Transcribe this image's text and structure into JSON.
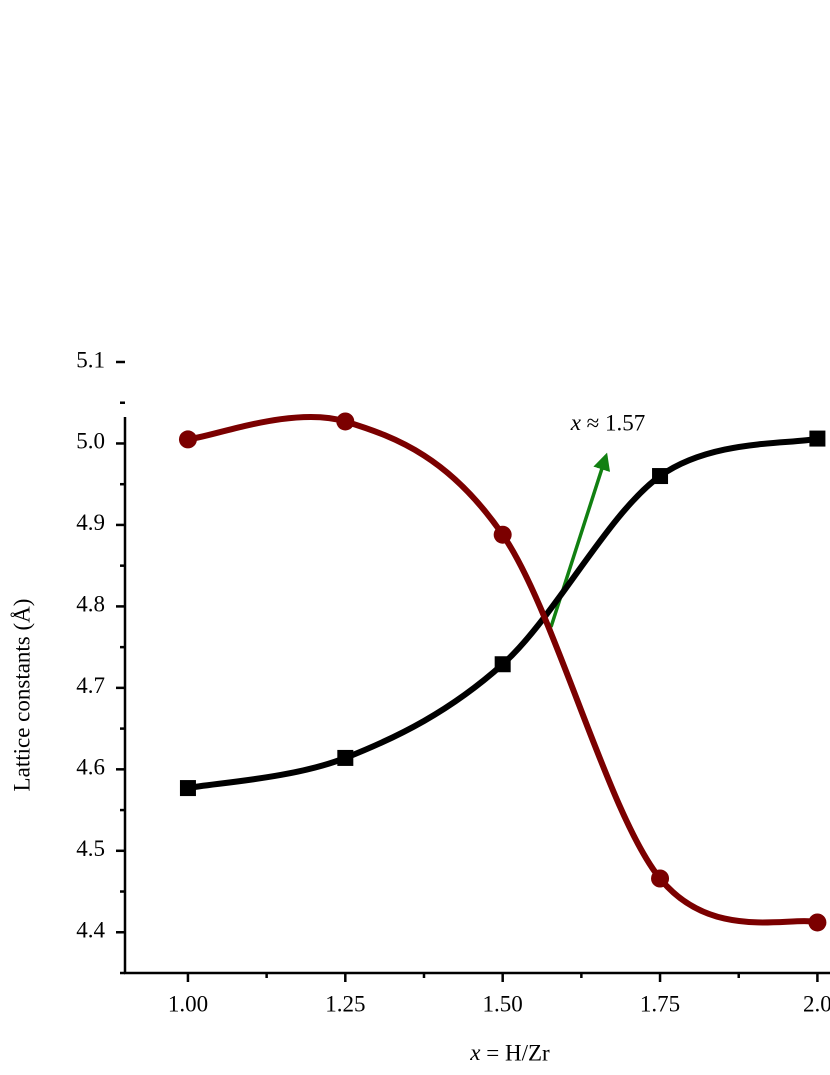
{
  "chart_data": {
    "type": "line",
    "x_label": "x = H/Zr",
    "y_label": "Lattice constants (Å)",
    "annotation": "x ≈ 1.57",
    "x": [
      1,
      1.25,
      1.5,
      1.75,
      2
    ],
    "xlim": [
      0.9,
      2.02
    ],
    "ylim": [
      4.35,
      5.1
    ],
    "xticks": [
      {
        "value": 1,
        "label": "1.00"
      },
      1.25,
      {
        "value": 1.5,
        "label": "1.50"
      },
      1.75,
      {
        "value": 2,
        "label": "2.0"
      }
    ],
    "yticks": [
      4.4,
      4.5,
      4.6,
      4.7,
      4.8,
      4.9,
      {
        "value": 5,
        "label": "5.0"
      },
      5.1
    ],
    "grid": false,
    "series": [
      {
        "color": "#000000",
        "marker": "square",
        "values": [
          4.577,
          4.614,
          4.729,
          4.96,
          5.006
        ]
      },
      {
        "color": "#7b0000",
        "marker": "circle",
        "values": [
          5.005,
          5.027,
          4.888,
          4.466,
          4.412
        ]
      }
    ]
  }
}
